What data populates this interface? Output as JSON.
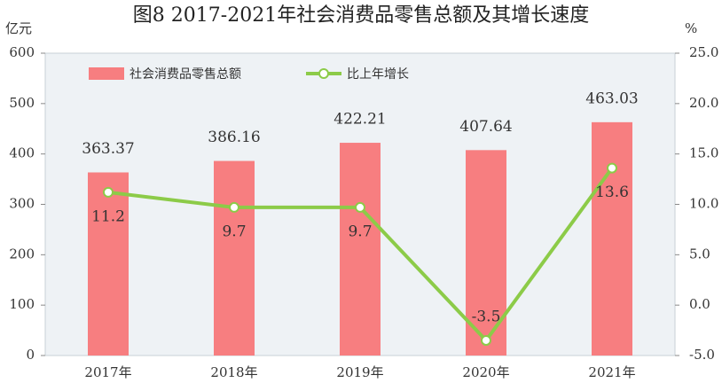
{
  "chart_data": {
    "type": "bar-line",
    "title": "图8  2017-2021年社会消费品零售总额及其增长速度",
    "y_label": "亿元",
    "y2_label": "%",
    "categories": [
      "2017年",
      "2018年",
      "2019年",
      "2020年",
      "2021年"
    ],
    "series": [
      {
        "name": "社会消费品零售总额",
        "type": "bar",
        "color": "#f77e80",
        "values": [
          363.37,
          386.16,
          422.21,
          407.64,
          463.03
        ]
      },
      {
        "name": "比上年增长",
        "type": "line",
        "axis": "y2",
        "color": "#8ccb48",
        "values": [
          11.2,
          9.7,
          9.7,
          -3.5,
          13.6
        ]
      }
    ],
    "ylim": [
      0,
      600
    ],
    "yticks": [
      0,
      100,
      200,
      300,
      400,
      500,
      600
    ],
    "y2lim": [
      -5,
      25
    ],
    "y2ticks": [
      {
        "value": -5,
        "label": "-5.0"
      },
      {
        "value": 0,
        "label": "0.0"
      },
      {
        "value": 5,
        "label": "5.0"
      },
      {
        "value": 10,
        "label": "10.0"
      },
      {
        "value": 15,
        "label": "15.0"
      },
      {
        "value": 20,
        "label": "20.0"
      },
      {
        "value": 25,
        "label": "25.0"
      }
    ],
    "legend": "top-left"
  }
}
